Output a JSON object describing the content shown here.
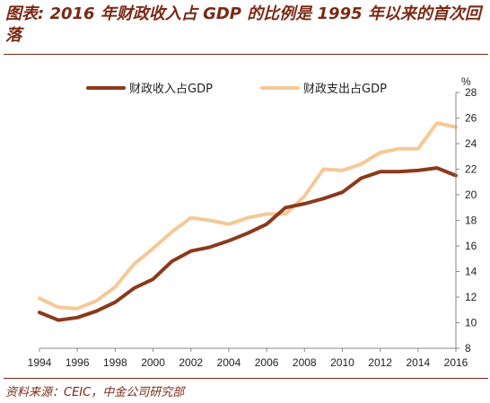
{
  "header": {
    "title": "图表: 2016 年财政收入占 GDP 的比例是 1995 年以来的首次回落"
  },
  "footer": {
    "source": "资料来源：CEIC，中金公司研究部"
  },
  "chart_data": {
    "type": "line",
    "title": "",
    "xlabel": "",
    "ylabel": "%",
    "x": [
      1994,
      1995,
      1996,
      1997,
      1998,
      1999,
      2000,
      2001,
      2002,
      2003,
      2004,
      2005,
      2006,
      2007,
      2008,
      2009,
      2010,
      2011,
      2012,
      2013,
      2014,
      2015,
      2016
    ],
    "x_ticks": [
      1994,
      1996,
      1998,
      2000,
      2002,
      2004,
      2006,
      2008,
      2010,
      2012,
      2014,
      2016
    ],
    "y_ticks": [
      8,
      10,
      12,
      14,
      16,
      18,
      20,
      22,
      24,
      26,
      28
    ],
    "ylim": [
      8,
      28
    ],
    "xlim": [
      1994,
      2016
    ],
    "y_axis_side": "right",
    "grid": false,
    "legend_position": "top",
    "series": [
      {
        "name": "财政收入占GDP",
        "color": "#8b3a1b",
        "values": [
          10.8,
          10.2,
          10.4,
          10.9,
          11.6,
          12.7,
          13.4,
          14.8,
          15.6,
          15.9,
          16.4,
          17.0,
          17.7,
          19.0,
          19.3,
          19.7,
          20.2,
          21.3,
          21.8,
          21.8,
          21.9,
          22.1,
          21.5
        ]
      },
      {
        "name": "财政支出占GDP",
        "color": "#f5c896",
        "values": [
          11.9,
          11.2,
          11.1,
          11.7,
          12.8,
          14.6,
          15.8,
          17.1,
          18.2,
          18.0,
          17.7,
          18.2,
          18.5,
          18.5,
          19.9,
          22.0,
          21.9,
          22.4,
          23.3,
          23.6,
          23.6,
          25.6,
          25.3
        ]
      }
    ]
  }
}
